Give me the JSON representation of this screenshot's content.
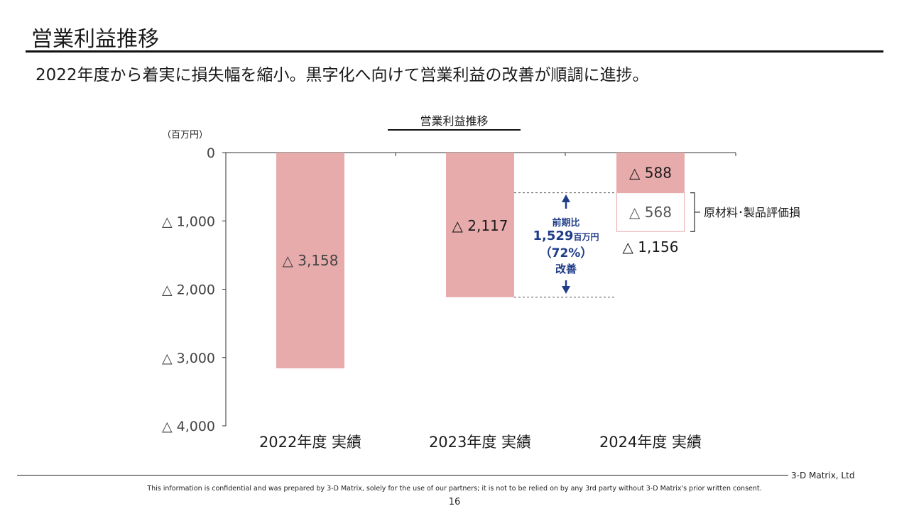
{
  "slide": {
    "title": "営業利益推移",
    "subtitle": "2022年度から着実に損失幅を縮小。黒字化へ向けて営業利益の改善が順調に進捗。"
  },
  "chart_data": {
    "type": "bar",
    "title": "営業利益推移",
    "unit_label": "（百万円）",
    "ylim": [
      -4000,
      0
    ],
    "y_ticks": [
      {
        "value": 0,
        "label": "0"
      },
      {
        "value": -1000,
        "label": "△ 1,000"
      },
      {
        "value": -2000,
        "label": "△ 2,000"
      },
      {
        "value": -3000,
        "label": "△ 3,000"
      },
      {
        "value": -4000,
        "label": "△ 4,000"
      }
    ],
    "categories": [
      "2022年度 実績",
      "2023年度 実績",
      "2024年度 実績"
    ],
    "values": [
      -3158,
      -2117,
      -1156
    ],
    "value_labels": [
      "△ 3,158",
      "△ 2,117",
      "△ 1,156"
    ],
    "breakdown_2024": [
      {
        "name": "",
        "value": -588,
        "label": "△ 588"
      },
      {
        "name": "原材料･製品評価損",
        "value": -568,
        "label": "△ 568"
      }
    ],
    "improvement": {
      "line1": "前期比",
      "amount": "1,529",
      "unit": "百万円",
      "percent": "（72%）",
      "line4": "改善"
    },
    "colors": {
      "bar": "#e8abac",
      "arrow": "#1f3c88",
      "outline_bar_border": "#e8abac"
    }
  },
  "footer": {
    "company": "3-D Matrix, Ltd",
    "confidential": "This information is confidential and was prepared by 3-D Matrix, solely for the use of our partners; it is not to be relied on by any 3rd party without 3-D Matrix's prior written consent.",
    "page_number": "16"
  }
}
